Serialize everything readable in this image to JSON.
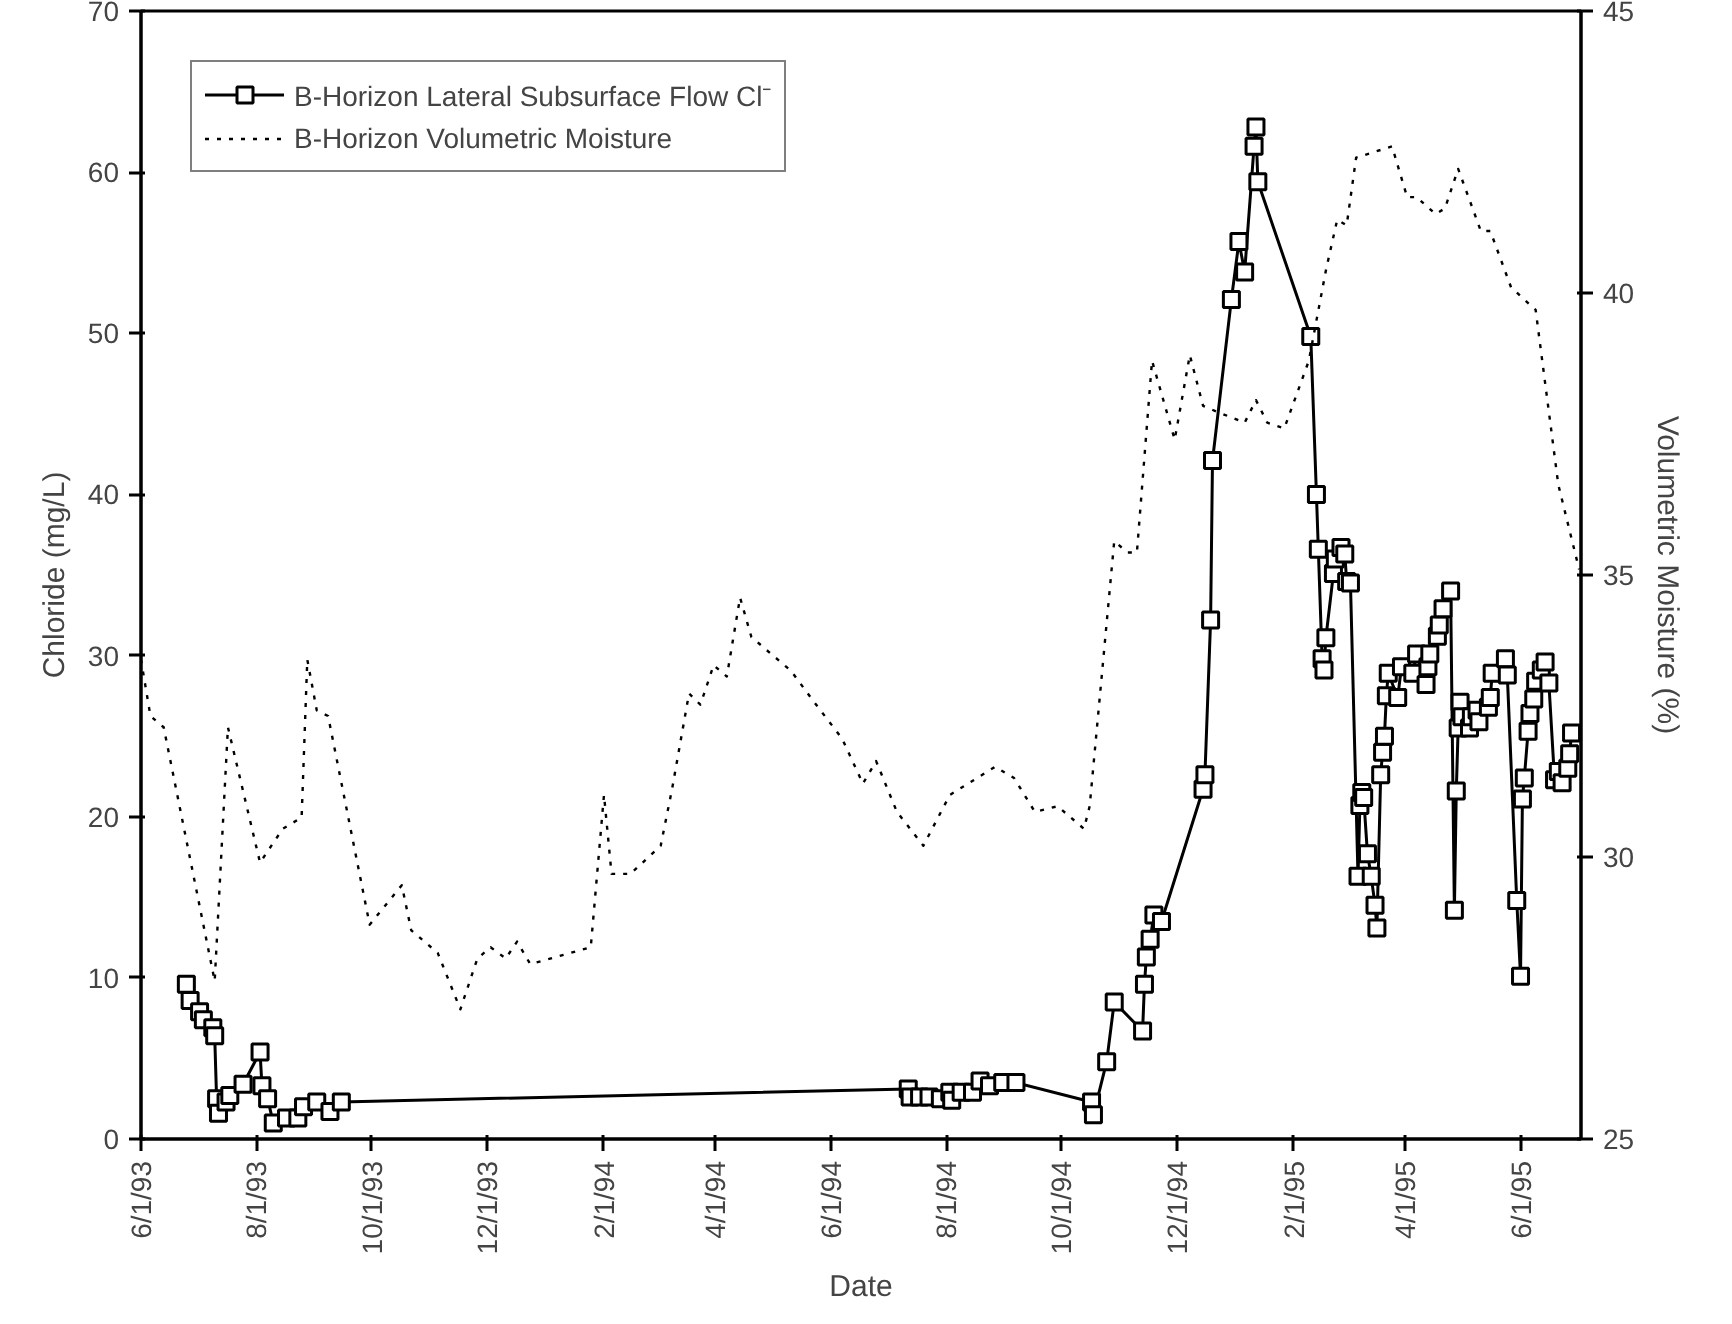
{
  "chart_data": {
    "type": "line",
    "xlabel": "Date",
    "ylabel": "Chloride (mg/L)",
    "y2label": "Volumetric Moisture (%)",
    "xlim": [
      "1993-06-01",
      "1995-07-03"
    ],
    "xticks": [
      {
        "value": "1993-06-01",
        "label": "6/1/93"
      },
      {
        "value": "1993-08-01",
        "label": "8/1/93"
      },
      {
        "value": "1993-10-01",
        "label": "10/1/93"
      },
      {
        "value": "1993-12-01",
        "label": "12/1/93"
      },
      {
        "value": "1994-02-01",
        "label": "2/1/94"
      },
      {
        "value": "1994-04-01",
        "label": "4/1/94"
      },
      {
        "value": "1994-06-01",
        "label": "6/1/94"
      },
      {
        "value": "1994-08-01",
        "label": "8/1/94"
      },
      {
        "value": "1994-10-01",
        "label": "10/1/94"
      },
      {
        "value": "1994-12-01",
        "label": "12/1/94"
      },
      {
        "value": "1995-02-01",
        "label": "2/1/95"
      },
      {
        "value": "1995-04-01",
        "label": "4/1/95"
      },
      {
        "value": "1995-06-01",
        "label": "6/1/95"
      }
    ],
    "ylim": [
      0,
      70
    ],
    "yticks": [
      0,
      10,
      20,
      30,
      40,
      50,
      60,
      70
    ],
    "y2lim": [
      25,
      45
    ],
    "y2ticks": [
      25,
      30,
      35,
      40,
      45
    ],
    "legend": "top left",
    "grid": false,
    "series": [
      {
        "name": "B-Horizon Lateral Subsurface Flow Cl⁻",
        "color": "#000000",
        "marker": "square",
        "line_style": "solid",
        "x": [
          "1993-06-25",
          "1993-06-27",
          "1993-07-02",
          "1993-07-04",
          "1993-07-09",
          "1993-07-10",
          "1993-07-11",
          "1993-07-12",
          "1993-07-16",
          "1993-07-18",
          "1993-07-25",
          "1993-08-03",
          "1993-08-04",
          "1993-08-07",
          "1993-08-10",
          "1993-08-17",
          "1993-08-23",
          "1993-08-26",
          "1993-09-02",
          "1993-09-09",
          "1993-09-15",
          "1994-07-12",
          "1994-07-13",
          "1994-07-18",
          "1994-07-23",
          "1994-07-29",
          "1994-08-03",
          "1994-08-04",
          "1994-08-09",
          "1994-08-15",
          "1994-08-19",
          "1994-08-24",
          "1994-08-31",
          "1994-09-07",
          "1994-10-17",
          "1994-10-18",
          "1994-10-25",
          "1994-10-29",
          "1994-11-13",
          "1994-11-14",
          "1994-11-15",
          "1994-11-17",
          "1994-11-19",
          "1994-11-23",
          "1994-12-15",
          "1994-12-16",
          "1994-12-19",
          "1994-12-20",
          "1994-12-30",
          "1995-01-03",
          "1995-01-06",
          "1995-01-11",
          "1995-01-12",
          "1995-01-13",
          "1995-02-10",
          "1995-02-13",
          "1995-02-14",
          "1995-02-16",
          "1995-02-17",
          "1995-02-18",
          "1995-02-22",
          "1995-02-23",
          "1995-02-26",
          "1995-02-28",
          "1995-03-01",
          "1995-03-03",
          "1995-03-07",
          "1995-03-08",
          "1995-03-09",
          "1995-03-10",
          "1995-03-12",
          "1995-03-14",
          "1995-03-16",
          "1995-03-17",
          "1995-03-19",
          "1995-03-20",
          "1995-03-21",
          "1995-03-22",
          "1995-03-23",
          "1995-03-28",
          "1995-03-30",
          "1995-04-05",
          "1995-04-07",
          "1995-04-12",
          "1995-04-13",
          "1995-04-14",
          "1995-04-18",
          "1995-04-19",
          "1995-04-21",
          "1995-04-25",
          "1995-04-27",
          "1995-04-28",
          "1995-04-29",
          "1995-04-30",
          "1995-05-01",
          "1995-05-05",
          "1995-05-06",
          "1995-05-09",
          "1995-05-10",
          "1995-05-15",
          "1995-05-16",
          "1995-05-17",
          "1995-05-24",
          "1995-05-25",
          "1995-05-30",
          "1995-06-01",
          "1995-06-02",
          "1995-06-03",
          "1995-06-05",
          "1995-06-06",
          "1995-06-08",
          "1995-06-09",
          "1995-06-12",
          "1995-06-14",
          "1995-06-16",
          "1995-06-19",
          "1995-06-21",
          "1995-06-23",
          "1995-06-26",
          "1995-06-27",
          "1995-06-28"
        ],
        "values": [
          9.6,
          8.6,
          7.9,
          7.4,
          6.9,
          6.4,
          2.5,
          1.6,
          2.3,
          2.7,
          3.4,
          5.4,
          3.3,
          2.5,
          1.0,
          1.3,
          1.3,
          2.0,
          2.3,
          1.7,
          2.3,
          3.1,
          2.6,
          2.6,
          2.6,
          2.5,
          2.9,
          2.4,
          2.9,
          2.9,
          3.6,
          3.3,
          3.5,
          3.5,
          2.3,
          1.5,
          4.8,
          8.5,
          6.7,
          9.6,
          11.3,
          12.4,
          13.9,
          13.5,
          21.7,
          22.6,
          32.2,
          42.1,
          52.1,
          55.7,
          53.8,
          61.6,
          62.8,
          59.4,
          49.8,
          40.0,
          36.6,
          29.8,
          29.1,
          31.1,
          35.1,
          36.0,
          36.7,
          36.3,
          34.6,
          34.5,
          16.3,
          20.7,
          21.5,
          21.2,
          17.7,
          16.3,
          14.5,
          13.1,
          22.6,
          24.0,
          25.0,
          27.5,
          28.9,
          27.4,
          29.3,
          28.9,
          30.1,
          28.2,
          29.3,
          30.1,
          31.2,
          31.9,
          32.9,
          34.0,
          14.2,
          21.6,
          25.5,
          27.1,
          26.2,
          25.5,
          26.2,
          26.6,
          25.9,
          26.8,
          27.4,
          28.9,
          29.8,
          28.8,
          14.8,
          10.1,
          21.1,
          22.4,
          25.3,
          26.4,
          27.3,
          28.4,
          29.1,
          29.6,
          28.3,
          22.3,
          22.8,
          22.1,
          23.0,
          23.9,
          25.2
        ]
      },
      {
        "name": "B-Horizon Volumetric Moisture",
        "color": "#000000",
        "marker": "none",
        "line_style": "dotted",
        "axis": "y2",
        "x": [
          "1993-06-01",
          "1993-06-06",
          "1993-06-13",
          "1993-07-10",
          "1993-07-17",
          "1993-08-03",
          "1993-08-15",
          "1993-08-25",
          "1993-08-28",
          "1993-09-02",
          "1993-09-08",
          "1993-09-30",
          "1993-10-17",
          "1993-10-22",
          "1993-11-05",
          "1993-11-17",
          "1993-11-26",
          "1993-12-03",
          "1993-12-11",
          "1993-12-17",
          "1993-12-24",
          "1994-01-25",
          "1994-02-01",
          "1994-02-05",
          "1994-02-15",
          "1994-03-03",
          "1994-03-09",
          "1994-03-18",
          "1994-03-24",
          "1994-03-31",
          "1994-04-07",
          "1994-04-14",
          "1994-04-20",
          "1994-05-11",
          "1994-05-22",
          "1994-06-07",
          "1994-06-18",
          "1994-06-25",
          "1994-07-06",
          "1994-07-20",
          "1994-08-03",
          "1994-08-27",
          "1994-09-06",
          "1994-09-17",
          "1994-09-29",
          "1994-10-13",
          "1994-10-16",
          "1994-10-29",
          "1994-11-05",
          "1994-11-10",
          "1994-11-18",
          "1994-11-30",
          "1994-12-08",
          "1994-12-15",
          "1994-12-22",
          "1995-01-06",
          "1995-01-12",
          "1995-01-18",
          "1995-01-27",
          "1995-02-09",
          "1995-02-18",
          "1995-02-24",
          "1995-03-01",
          "1995-03-06",
          "1995-03-25",
          "1995-04-02",
          "1995-04-07",
          "1995-04-17",
          "1995-04-22",
          "1995-04-29",
          "1995-05-11",
          "1995-05-16",
          "1995-05-27",
          "1995-06-09",
          "1995-06-21",
          "1995-07-02"
        ],
        "values": [
          33.5,
          32.5,
          32.3,
          27.8,
          32.3,
          29.9,
          30.5,
          30.7,
          33.5,
          32.6,
          32.5,
          28.8,
          29.5,
          28.7,
          28.3,
          27.3,
          28.2,
          28.4,
          28.2,
          28.5,
          28.1,
          28.4,
          31.1,
          29.7,
          29.7,
          30.2,
          31.2,
          32.9,
          32.7,
          33.4,
          33.2,
          34.6,
          33.9,
          33.3,
          32.8,
          32.1,
          31.3,
          31.7,
          30.8,
          30.2,
          31.1,
          31.6,
          31.4,
          30.8,
          30.9,
          30.5,
          30.9,
          35.6,
          35.4,
          35.4,
          38.8,
          37.4,
          38.9,
          38.0,
          37.9,
          37.7,
          38.1,
          37.7,
          37.6,
          38.8,
          40.4,
          41.3,
          41.2,
          42.4,
          42.6,
          41.7,
          41.7,
          41.4,
          41.5,
          42.2,
          41.1,
          41.1,
          40.1,
          39.7,
          36.6,
          35.1
        ]
      }
    ]
  }
}
